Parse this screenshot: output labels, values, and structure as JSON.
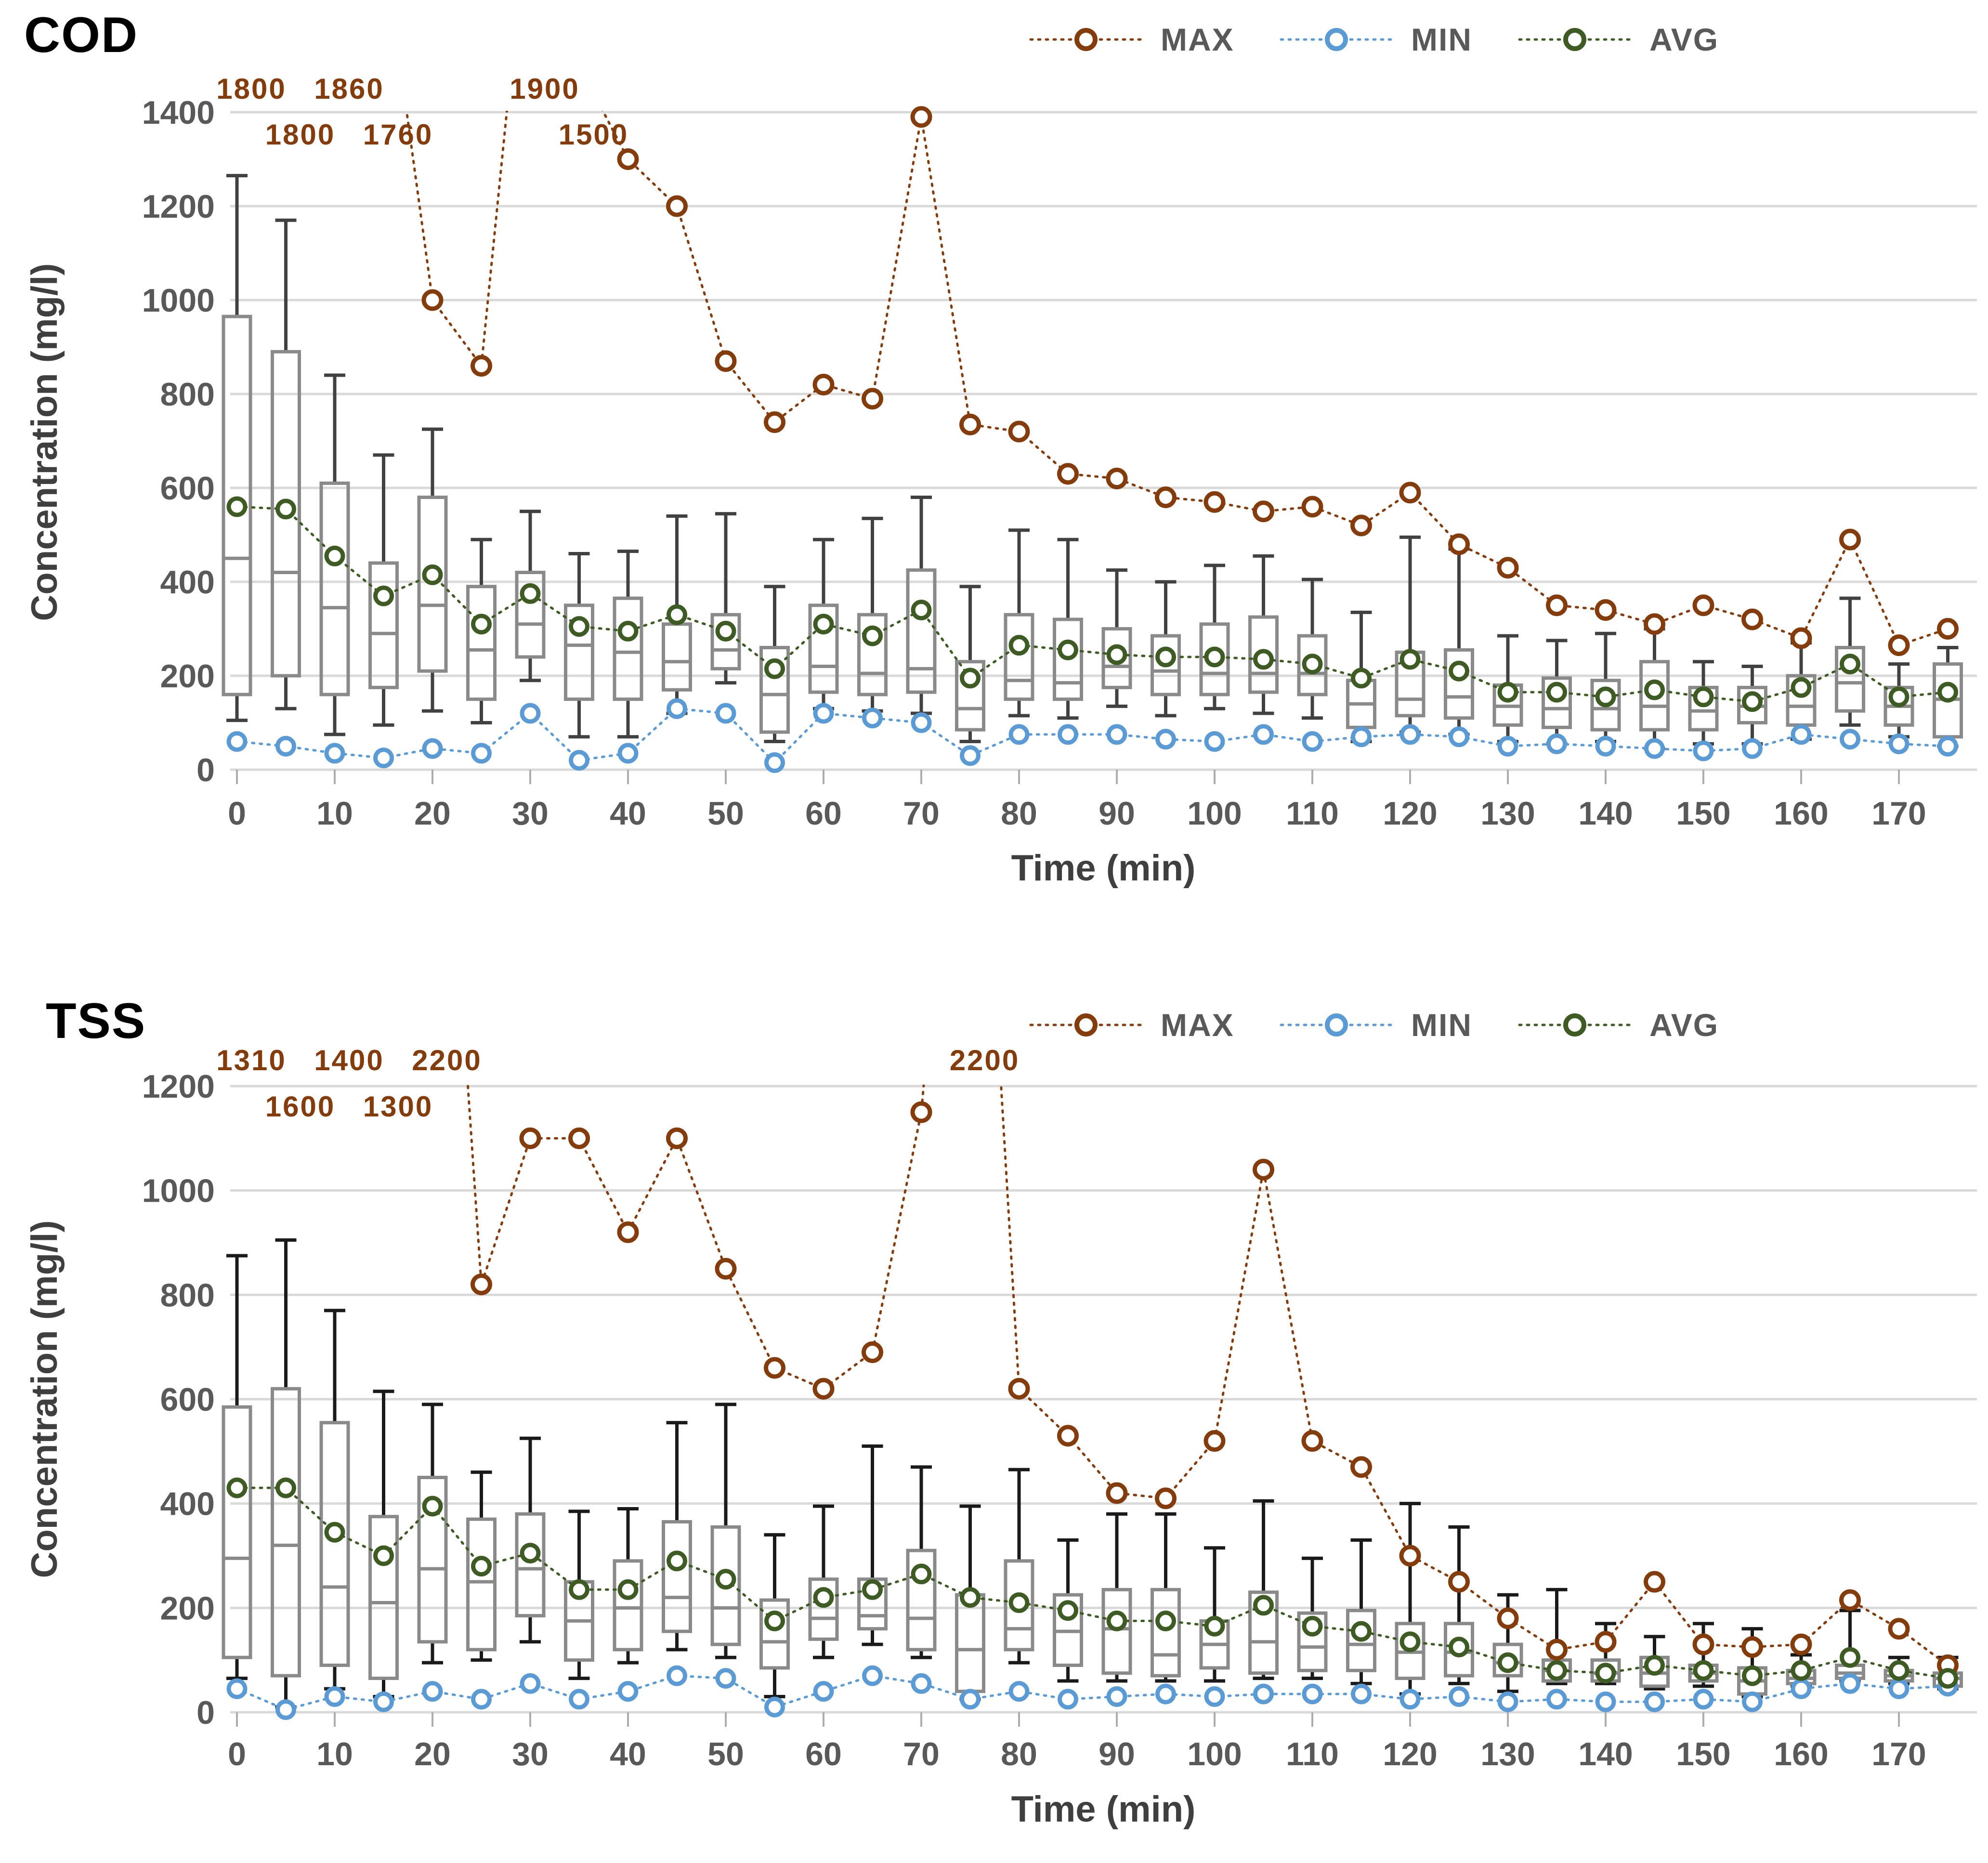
{
  "colors": {
    "max": "#843C0C",
    "min": "#5B9BD5",
    "avg": "#3D5B23",
    "box_outline": "#8A8A8A",
    "whisker_cod": "#414141",
    "whisker_tss": "#1A1A1A",
    "grid": "#D9D9D9",
    "axis_text": "#595959",
    "annotation_text": "#843C0C",
    "background": "#FFFFFF"
  },
  "chart_data": [
    {
      "id": "cod",
      "type": "box+line",
      "title": "COD",
      "xlabel": "Time (min)",
      "ylabel": "Concentration (mg/l)",
      "x": [
        0,
        5,
        10,
        15,
        20,
        25,
        30,
        35,
        40,
        45,
        50,
        55,
        60,
        65,
        70,
        75,
        80,
        85,
        90,
        95,
        100,
        105,
        110,
        115,
        120,
        125,
        130,
        135,
        140,
        145,
        150,
        155,
        160,
        165,
        170,
        175
      ],
      "x_label_step_min": 10,
      "ylim": [
        0,
        1400
      ],
      "ytick": 200,
      "grid": true,
      "legend_position": "top-right",
      "series": [
        {
          "name": "MAX",
          "color": "#843C0C",
          "values": [
            1800,
            1800,
            1860,
            1760,
            1000,
            860,
            1900,
            1500,
            1300,
            1200,
            870,
            740,
            820,
            790,
            1390,
            735,
            720,
            630,
            620,
            580,
            570,
            550,
            560,
            520,
            590,
            480,
            430,
            350,
            340,
            310,
            350,
            320,
            280,
            490,
            265,
            300
          ]
        },
        {
          "name": "MIN",
          "color": "#5B9BD5",
          "values": [
            60,
            50,
            35,
            25,
            45,
            35,
            120,
            20,
            35,
            130,
            120,
            15,
            120,
            110,
            100,
            30,
            75,
            75,
            75,
            65,
            60,
            75,
            60,
            70,
            75,
            70,
            50,
            55,
            50,
            45,
            40,
            45,
            75,
            65,
            55,
            50
          ]
        },
        {
          "name": "AVG",
          "color": "#3D5B23",
          "values": [
            560,
            555,
            455,
            370,
            415,
            310,
            375,
            305,
            295,
            330,
            295,
            215,
            310,
            285,
            340,
            195,
            265,
            255,
            245,
            240,
            240,
            235,
            225,
            195,
            235,
            210,
            165,
            165,
            155,
            170,
            155,
            145,
            175,
            225,
            155,
            165
          ]
        }
      ],
      "box": {
        "low": [
          105,
          130,
          75,
          95,
          125,
          100,
          190,
          70,
          70,
          120,
          185,
          60,
          130,
          125,
          120,
          60,
          115,
          110,
          135,
          115,
          130,
          120,
          110,
          60,
          80,
          75,
          60,
          55,
          60,
          45,
          55,
          55,
          65,
          95,
          70,
          50
        ],
        "q1": [
          160,
          200,
          160,
          175,
          210,
          150,
          240,
          150,
          150,
          170,
          215,
          80,
          165,
          160,
          165,
          85,
          150,
          150,
          175,
          160,
          160,
          165,
          160,
          90,
          115,
          110,
          95,
          90,
          85,
          85,
          85,
          100,
          95,
          125,
          95,
          70
        ],
        "median": [
          450,
          420,
          345,
          290,
          350,
          255,
          310,
          265,
          250,
          230,
          255,
          160,
          220,
          205,
          215,
          130,
          190,
          185,
          220,
          210,
          205,
          205,
          205,
          140,
          150,
          155,
          135,
          130,
          130,
          135,
          125,
          135,
          135,
          185,
          135,
          150
        ],
        "q3": [
          965,
          890,
          610,
          440,
          580,
          390,
          420,
          350,
          365,
          310,
          330,
          260,
          350,
          330,
          425,
          230,
          330,
          320,
          300,
          285,
          310,
          325,
          285,
          190,
          250,
          255,
          180,
          195,
          190,
          230,
          175,
          175,
          200,
          260,
          175,
          225
        ],
        "high": [
          1265,
          1170,
          840,
          670,
          725,
          490,
          550,
          460,
          465,
          540,
          545,
          390,
          490,
          535,
          580,
          390,
          510,
          490,
          425,
          400,
          435,
          455,
          405,
          335,
          495,
          470,
          285,
          275,
          290,
          300,
          230,
          220,
          270,
          365,
          225,
          260
        ]
      },
      "offscale_max_labels": [
        {
          "x": 0,
          "value": "1800",
          "row": 1
        },
        {
          "x": 5,
          "value": "1800",
          "row": 2
        },
        {
          "x": 10,
          "value": "1860",
          "row": 1
        },
        {
          "x": 15,
          "value": "1760",
          "row": 2
        },
        {
          "x": 30,
          "value": "1900",
          "row": 1
        },
        {
          "x": 35,
          "value": "1500",
          "row": 2
        }
      ]
    },
    {
      "id": "tss",
      "type": "box+line",
      "title": "TSS",
      "xlabel": "Time (min)",
      "ylabel": "Concentration (mg/l)",
      "x": [
        0,
        5,
        10,
        15,
        20,
        25,
        30,
        35,
        40,
        45,
        50,
        55,
        60,
        65,
        70,
        75,
        80,
        85,
        90,
        95,
        100,
        105,
        110,
        115,
        120,
        125,
        130,
        135,
        140,
        145,
        150,
        155,
        160,
        165,
        170,
        175
      ],
      "x_label_step_min": 10,
      "ylim": [
        0,
        1200
      ],
      "ytick": 200,
      "grid": true,
      "legend_position": "top-right",
      "series": [
        {
          "name": "MAX",
          "color": "#843C0C",
          "values": [
            1310,
            1600,
            1400,
            1300,
            2200,
            820,
            1100,
            1100,
            920,
            1100,
            850,
            660,
            620,
            690,
            1150,
            2200,
            620,
            530,
            420,
            410,
            520,
            1040,
            520,
            470,
            300,
            250,
            180,
            120,
            135,
            250,
            130,
            125,
            130,
            215,
            160,
            90
          ]
        },
        {
          "name": "MIN",
          "color": "#5B9BD5",
          "values": [
            45,
            5,
            30,
            20,
            40,
            25,
            55,
            25,
            40,
            70,
            65,
            10,
            40,
            70,
            55,
            25,
            40,
            25,
            30,
            35,
            30,
            35,
            35,
            35,
            25,
            30,
            20,
            25,
            20,
            20,
            25,
            20,
            45,
            55,
            45,
            50
          ]
        },
        {
          "name": "AVG",
          "color": "#3D5B23",
          "values": [
            430,
            430,
            345,
            300,
            395,
            280,
            305,
            235,
            235,
            290,
            255,
            175,
            220,
            235,
            265,
            220,
            210,
            195,
            175,
            175,
            165,
            205,
            165,
            155,
            135,
            125,
            95,
            80,
            75,
            90,
            80,
            70,
            80,
            105,
            80,
            65
          ]
        }
      ],
      "box": {
        "low": [
          65,
          10,
          45,
          30,
          95,
          100,
          135,
          65,
          95,
          120,
          105,
          30,
          105,
          130,
          105,
          25,
          95,
          60,
          60,
          60,
          60,
          65,
          65,
          55,
          35,
          55,
          40,
          55,
          55,
          45,
          50,
          30,
          50,
          60,
          55,
          45
        ],
        "q1": [
          105,
          70,
          90,
          65,
          135,
          120,
          185,
          100,
          120,
          155,
          130,
          85,
          140,
          160,
          120,
          40,
          120,
          90,
          75,
          70,
          85,
          75,
          80,
          80,
          65,
          70,
          70,
          60,
          60,
          50,
          60,
          35,
          55,
          65,
          60,
          50
        ],
        "median": [
          295,
          320,
          240,
          210,
          275,
          250,
          275,
          175,
          200,
          220,
          200,
          135,
          180,
          185,
          180,
          120,
          160,
          155,
          160,
          110,
          130,
          135,
          125,
          130,
          115,
          115,
          95,
          80,
          75,
          75,
          75,
          60,
          65,
          75,
          70,
          65
        ],
        "q3": [
          585,
          620,
          555,
          375,
          450,
          370,
          380,
          250,
          290,
          365,
          355,
          215,
          255,
          255,
          310,
          225,
          290,
          225,
          235,
          235,
          175,
          230,
          190,
          195,
          170,
          170,
          130,
          100,
          100,
          105,
          90,
          85,
          80,
          90,
          80,
          75
        ],
        "high": [
          875,
          905,
          770,
          615,
          590,
          460,
          525,
          385,
          390,
          555,
          590,
          340,
          395,
          510,
          470,
          395,
          465,
          330,
          380,
          380,
          315,
          405,
          295,
          330,
          400,
          355,
          225,
          235,
          170,
          145,
          170,
          160,
          110,
          195,
          105,
          105
        ]
      },
      "offscale_max_labels": [
        {
          "x": 0,
          "value": "1310",
          "row": 1
        },
        {
          "x": 5,
          "value": "1600",
          "row": 2
        },
        {
          "x": 10,
          "value": "1400",
          "row": 1
        },
        {
          "x": 15,
          "value": "1300",
          "row": 2
        },
        {
          "x": 20,
          "value": "2200",
          "row": 1
        },
        {
          "x": 75,
          "value": "2200",
          "row": 1
        }
      ]
    }
  ]
}
